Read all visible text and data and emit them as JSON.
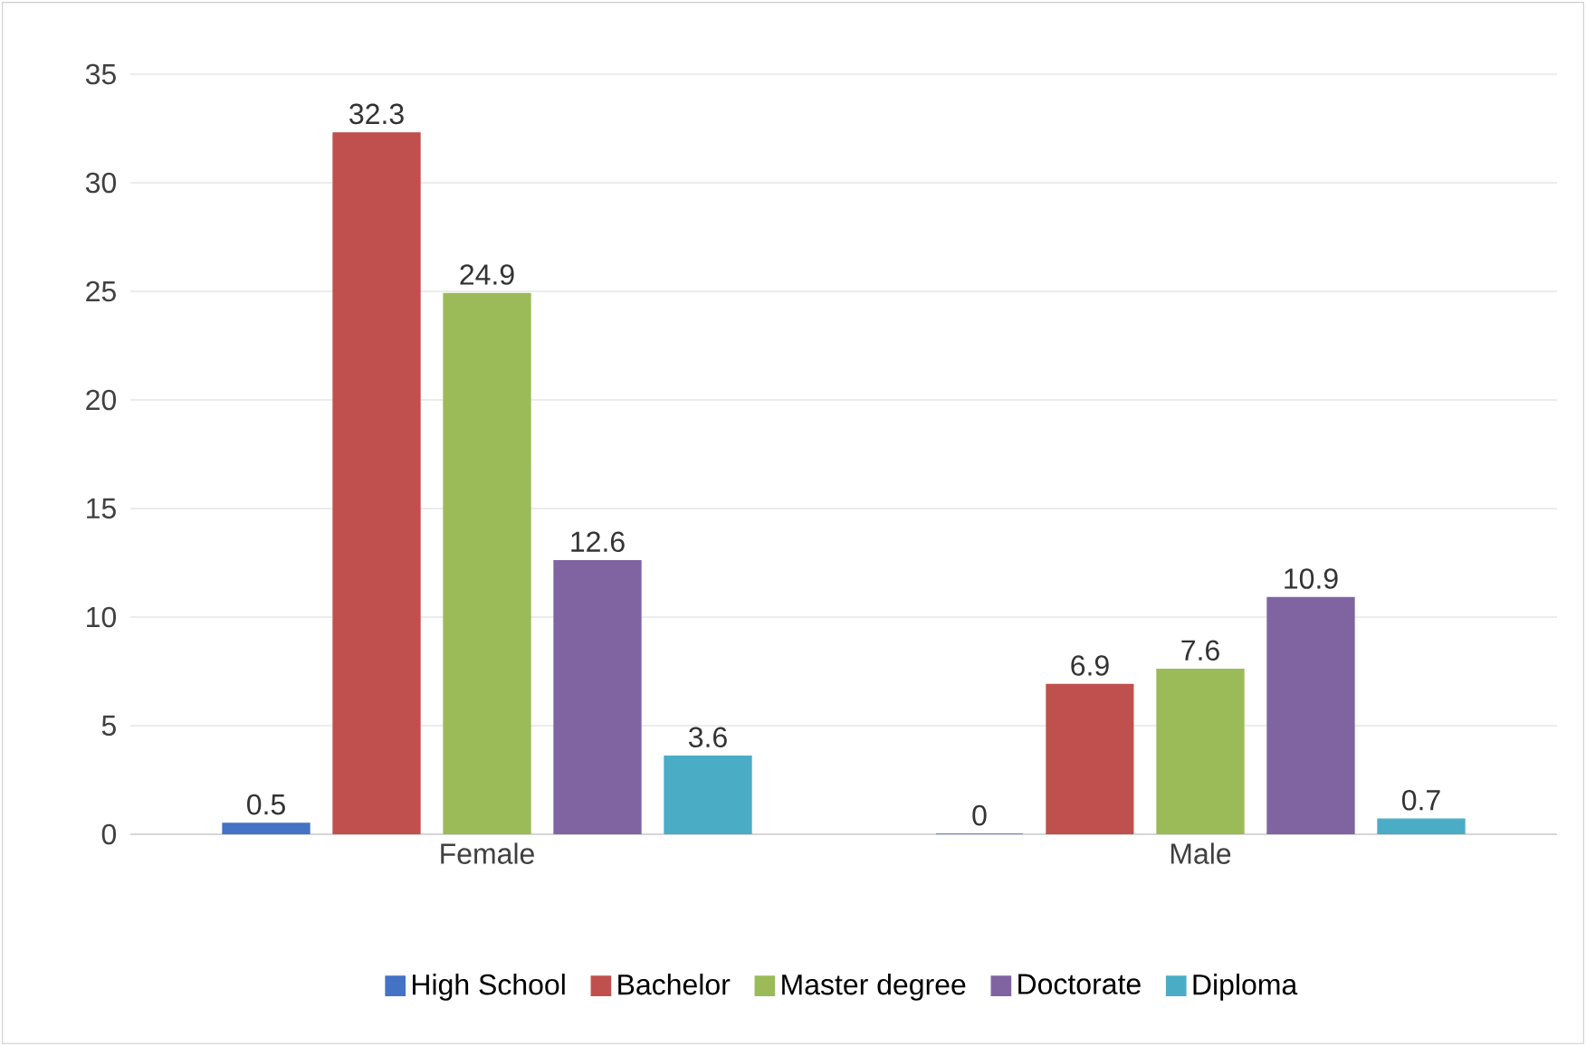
{
  "chart_data": {
    "type": "bar",
    "categories": [
      "Female",
      "Male"
    ],
    "series": [
      {
        "name": "High School",
        "color": "#4472c4",
        "values": [
          0.5,
          0
        ],
        "value_labels": [
          "0.5",
          "0"
        ]
      },
      {
        "name": "Bachelor",
        "color": "#c0504d",
        "values": [
          32.3,
          6.9
        ],
        "value_labels": [
          "32.3",
          "6.9"
        ]
      },
      {
        "name": "Master degree",
        "color": "#9bbb59",
        "values": [
          24.9,
          7.6
        ],
        "value_labels": [
          "24.9",
          "7.6"
        ]
      },
      {
        "name": "Doctorate",
        "color": "#8064a2",
        "values": [
          12.6,
          10.9
        ],
        "value_labels": [
          "12.6",
          "10.9"
        ]
      },
      {
        "name": "Diploma",
        "color": "#4bacc6",
        "values": [
          3.6,
          0.7
        ],
        "value_labels": [
          "3.6",
          "0.7"
        ]
      }
    ],
    "ylim": [
      0,
      35
    ],
    "yticks": [
      0,
      5,
      10,
      15,
      20,
      25,
      30,
      35
    ],
    "grid": "y",
    "legend": "bottom"
  }
}
